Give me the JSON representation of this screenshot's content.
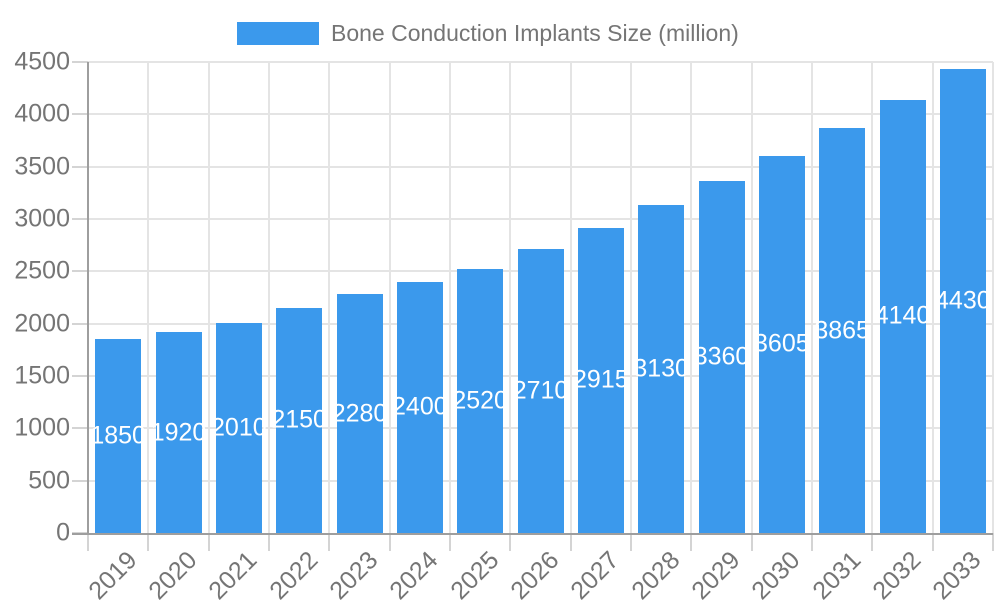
{
  "legend": {
    "label": "Bone Conduction Implants Size (million)"
  },
  "chart_data": {
    "type": "bar",
    "title": "Bone Conduction Implants Size (million)",
    "categories": [
      "2019",
      "2020",
      "2021",
      "2022",
      "2023",
      "2024",
      "2025",
      "2026",
      "2027",
      "2028",
      "2029",
      "2030",
      "2031",
      "2032",
      "2033"
    ],
    "values": [
      1850,
      1920,
      2010,
      2150,
      2280,
      2400,
      2520,
      2710,
      2915,
      3130,
      3360,
      3605,
      3865,
      4140,
      4430
    ],
    "xlabel": "",
    "ylabel": "",
    "ylim": [
      0,
      4500
    ],
    "ytick_step": 500,
    "grid": true,
    "legend_position": "top",
    "value_labels": "inside-center",
    "xlabel_rotation_deg": 45,
    "colors": {
      "bar": "#3b99ec",
      "value_label_text": "#ffffff",
      "axis_text": "#757575",
      "gridline": "#e4e4e4",
      "axis_line": "#9e9e9e",
      "tick": "#d4d4d4",
      "background": "#ffffff"
    }
  }
}
